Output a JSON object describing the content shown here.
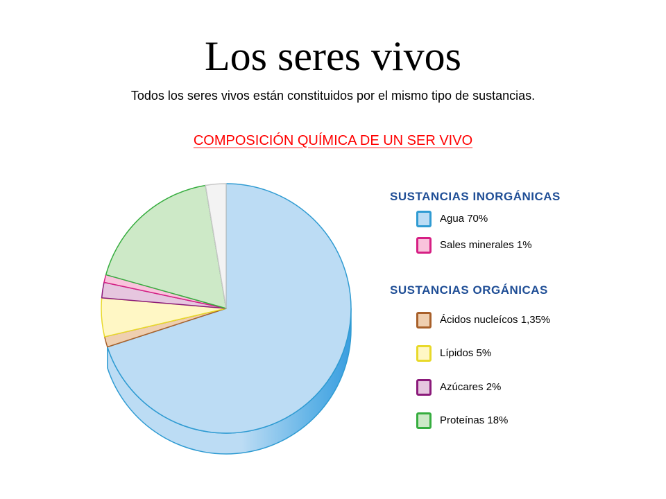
{
  "title": "Los seres vivos",
  "subtitle": "Todos los seres vivos están constituidos por el mismo tipo de sustancias.",
  "chart_data": {
    "type": "pie",
    "title": "COMPOSICIÓN QUÍMICA DE UN SER VIVO",
    "legend_position": "right",
    "groups": [
      {
        "title": "SUSTANCIAS INORGÁNICAS",
        "items": [
          {
            "label": "Agua 70%",
            "name": "Agua",
            "value": 70,
            "fill": "#bcdcf4",
            "stroke": "#2f9bd2"
          },
          {
            "label": "Sales minerales 1%",
            "name": "Sales minerales",
            "value": 1,
            "fill": "#f9c3dc",
            "stroke": "#d61f84"
          }
        ]
      },
      {
        "title": "SUSTANCIAS ORGÁNICAS",
        "items": [
          {
            "label": "Ácidos nucleícos 1,35%",
            "name": "Ácidos nucleícos",
            "value": 1.35,
            "fill": "#efcfb0",
            "stroke": "#a8602a"
          },
          {
            "label": "Lípidos 5%",
            "name": "Lípidos",
            "value": 5,
            "fill": "#fff7c5",
            "stroke": "#e8d92a"
          },
          {
            "label": "Azúcares 2%",
            "name": "Azúcares",
            "value": 2,
            "fill": "#e6c6df",
            "stroke": "#8b1a7a"
          },
          {
            "label": "Proteínas 18%",
            "name": "Proteínas",
            "value": 18,
            "fill": "#cde9c7",
            "stroke": "#36ad3f"
          }
        ]
      }
    ],
    "unlabeled_slice": {
      "value": 2.65,
      "fill": "#f3f3f3",
      "stroke": "#c8c8c8"
    },
    "slice_order_clockwise_from_top": [
      "Agua",
      "Ácidos nucleícos",
      "Lípidos",
      "Azúcares",
      "Sales minerales",
      "Proteínas",
      "unlabeled"
    ]
  }
}
